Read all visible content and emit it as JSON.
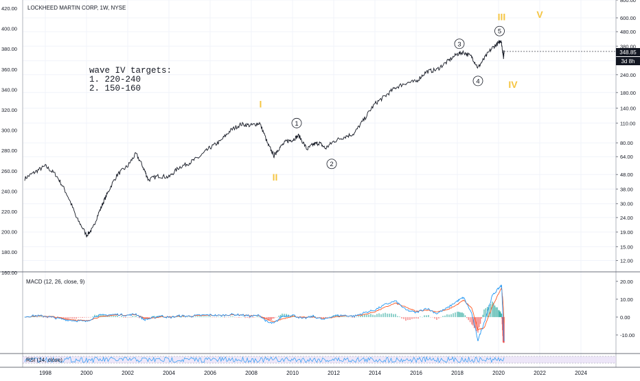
{
  "chart_data": {
    "type": "line",
    "title": "LOCKHEED MARTIN CORP, 1W, NYSE",
    "scale": "log",
    "left_axis_ticks": [
      "180.00",
      "200.00",
      "220.00",
      "240.00",
      "260.00",
      "280.00",
      "300.00",
      "320.00",
      "340.00",
      "360.00",
      "380.00",
      "400.00",
      "420.00"
    ],
    "left_axis_partial_tick": "160.00",
    "right_axis_ticks": [
      {
        "label": "12.00",
        "value": 12
      },
      {
        "label": "15.00",
        "value": 15
      },
      {
        "label": "19.00",
        "value": 19
      },
      {
        "label": "24.00",
        "value": 24
      },
      {
        "label": "30.00",
        "value": 30
      },
      {
        "label": "38.00",
        "value": 38
      },
      {
        "label": "48.00",
        "value": 48
      },
      {
        "label": "64.00",
        "value": 64
      },
      {
        "label": "80.00",
        "value": 80
      },
      {
        "label": "110.00",
        "value": 110
      },
      {
        "label": "140.00",
        "value": 140
      },
      {
        "label": "180.00",
        "value": 180
      },
      {
        "label": "240.00",
        "value": 240
      },
      {
        "label": "300.00",
        "value": 300
      },
      {
        "label": "380.00",
        "value": 380
      },
      {
        "label": "480.00",
        "value": 480
      },
      {
        "label": "600.00",
        "value": 600
      },
      {
        "label": "800.00",
        "value": 800
      }
    ],
    "ylim": [
      10,
      800
    ],
    "x_ticks": [
      "1998",
      "2000",
      "2002",
      "2004",
      "2006",
      "2008",
      "2010",
      "2012",
      "2014",
      "2016",
      "2018",
      "2020",
      "2022",
      "2024"
    ],
    "xlim": [
      1996.9,
      2025.7
    ],
    "last_price_label": "348.85",
    "time_left_label": "3d 8h",
    "series": [
      {
        "values": [
          [
            1997.0,
            45
          ],
          [
            1997.5,
            50
          ],
          [
            1998.0,
            55
          ],
          [
            1998.5,
            48
          ],
          [
            1999.0,
            36
          ],
          [
            1999.5,
            24
          ],
          [
            2000.0,
            18
          ],
          [
            2000.3,
            20
          ],
          [
            2000.7,
            28
          ],
          [
            2001.0,
            35
          ],
          [
            2001.5,
            48
          ],
          [
            2002.0,
            55
          ],
          [
            2002.4,
            67
          ],
          [
            2002.8,
            52
          ],
          [
            2003.0,
            44
          ],
          [
            2003.5,
            47
          ],
          [
            2004.0,
            46
          ],
          [
            2004.5,
            54
          ],
          [
            2005.0,
            58
          ],
          [
            2005.5,
            64
          ],
          [
            2006.0,
            74
          ],
          [
            2006.5,
            82
          ],
          [
            2007.0,
            98
          ],
          [
            2007.5,
            108
          ],
          [
            2008.0,
            106
          ],
          [
            2008.4,
            110
          ],
          [
            2008.8,
            78
          ],
          [
            2009.1,
            65
          ],
          [
            2009.3,
            72
          ],
          [
            2009.7,
            82
          ],
          [
            2010.0,
            84
          ],
          [
            2010.3,
            90
          ],
          [
            2010.7,
            72
          ],
          [
            2011.0,
            78
          ],
          [
            2011.3,
            80
          ],
          [
            2011.6,
            73
          ],
          [
            2012.0,
            82
          ],
          [
            2012.5,
            88
          ],
          [
            2013.0,
            93
          ],
          [
            2013.5,
            118
          ],
          [
            2014.0,
            150
          ],
          [
            2014.5,
            170
          ],
          [
            2015.0,
            195
          ],
          [
            2015.5,
            210
          ],
          [
            2016.0,
            215
          ],
          [
            2016.5,
            252
          ],
          [
            2017.0,
            260
          ],
          [
            2017.5,
            295
          ],
          [
            2018.0,
            335
          ],
          [
            2018.3,
            345
          ],
          [
            2018.7,
            320
          ],
          [
            2019.0,
            268
          ],
          [
            2019.3,
            310
          ],
          [
            2019.7,
            370
          ],
          [
            2020.0,
            400
          ],
          [
            2020.12,
            420
          ],
          [
            2020.2,
            350
          ],
          [
            2020.24,
            320
          ],
          [
            2020.27,
            349
          ]
        ]
      }
    ],
    "annotations": [
      {
        "text": "I",
        "x": 2008.45,
        "y": 150,
        "color": "#f5c542",
        "kind": "major"
      },
      {
        "text": "II",
        "x": 2009.15,
        "y": 46,
        "color": "#f5c542",
        "kind": "major"
      },
      {
        "text": "III",
        "x": 2020.15,
        "y": 610,
        "color": "#f5c542",
        "kind": "major"
      },
      {
        "text": "IV",
        "x": 2020.7,
        "y": 205,
        "color": "#f5c542",
        "kind": "major"
      },
      {
        "text": "V",
        "x": 2022.0,
        "y": 635,
        "color": "#f5c542",
        "kind": "major"
      },
      {
        "text": "1",
        "x": 2010.2,
        "y": 110,
        "kind": "minor"
      },
      {
        "text": "2",
        "x": 2011.9,
        "y": 57,
        "kind": "minor"
      },
      {
        "text": "3",
        "x": 2018.1,
        "y": 395,
        "kind": "minor"
      },
      {
        "text": "4",
        "x": 2019.0,
        "y": 217,
        "kind": "minor"
      },
      {
        "text": "5",
        "x": 2020.05,
        "y": 485,
        "kind": "minor"
      }
    ],
    "note_lines": [
      "wave IV targets:",
      "1. 220-240",
      "2. 150-160"
    ],
    "macd": {
      "label": "MACD (12, 26, close, 9)",
      "ticks": [
        {
          "label": "20.00",
          "value": 20
        },
        {
          "label": "10.00",
          "value": 10
        },
        {
          "label": "0.00",
          "value": 0
        },
        {
          "label": "-10.00",
          "value": -10
        }
      ],
      "ylim": [
        -20,
        23
      ],
      "macd_color": "#2196f3",
      "signal_color": "#ff5722",
      "values": [
        [
          1997.0,
          0.3
        ],
        [
          1997.5,
          0.8
        ],
        [
          1998.0,
          0.5
        ],
        [
          1998.5,
          -0.5
        ],
        [
          1999.0,
          -1.5
        ],
        [
          1999.5,
          -2.0
        ],
        [
          2000.0,
          -2.5
        ],
        [
          2000.5,
          0.8
        ],
        [
          2001.0,
          1.2
        ],
        [
          2001.5,
          1.5
        ],
        [
          2002.0,
          1.0
        ],
        [
          2002.4,
          1.8
        ],
        [
          2002.8,
          -1.5
        ],
        [
          2003.2,
          -0.5
        ],
        [
          2003.6,
          0.8
        ],
        [
          2004.0,
          -0.3
        ],
        [
          2004.5,
          0.7
        ],
        [
          2005.0,
          0.5
        ],
        [
          2005.5,
          1.0
        ],
        [
          2006.0,
          1.2
        ],
        [
          2006.5,
          0.8
        ],
        [
          2007.0,
          1.5
        ],
        [
          2007.5,
          1.2
        ],
        [
          2008.0,
          0.5
        ],
        [
          2008.4,
          1.0
        ],
        [
          2008.8,
          -3.0
        ],
        [
          2009.1,
          -3.5
        ],
        [
          2009.5,
          0.5
        ],
        [
          2010.0,
          1.2
        ],
        [
          2010.5,
          -1.0
        ],
        [
          2011.0,
          0.5
        ],
        [
          2011.5,
          -1.5
        ],
        [
          2012.0,
          0.8
        ],
        [
          2012.5,
          1.0
        ],
        [
          2013.0,
          0.5
        ],
        [
          2013.5,
          2.5
        ],
        [
          2014.0,
          4.0
        ],
        [
          2014.5,
          7.0
        ],
        [
          2015.0,
          9.0
        ],
        [
          2015.5,
          4.0
        ],
        [
          2016.0,
          2.5
        ],
        [
          2016.5,
          5.0
        ],
        [
          2017.0,
          2.0
        ],
        [
          2017.5,
          5.0
        ],
        [
          2018.0,
          9.0
        ],
        [
          2018.3,
          11.0
        ],
        [
          2018.7,
          2.0
        ],
        [
          2019.0,
          -13.0
        ],
        [
          2019.3,
          -3.0
        ],
        [
          2019.7,
          12.0
        ],
        [
          2020.0,
          16.0
        ],
        [
          2020.15,
          18.0
        ],
        [
          2020.22,
          -2.0
        ],
        [
          2020.27,
          -13.0
        ]
      ],
      "signal": [
        [
          1997.0,
          0.1
        ],
        [
          1997.5,
          0.5
        ],
        [
          1998.0,
          0.6
        ],
        [
          1998.5,
          0.0
        ],
        [
          1999.0,
          -1.0
        ],
        [
          1999.5,
          -1.6
        ],
        [
          2000.0,
          -2.1
        ],
        [
          2000.5,
          -0.3
        ],
        [
          2001.0,
          0.7
        ],
        [
          2001.5,
          1.2
        ],
        [
          2002.0,
          1.1
        ],
        [
          2002.4,
          1.4
        ],
        [
          2002.8,
          -0.5
        ],
        [
          2003.2,
          -0.7
        ],
        [
          2003.6,
          0.2
        ],
        [
          2004.0,
          0.1
        ],
        [
          2004.5,
          0.4
        ],
        [
          2005.0,
          0.5
        ],
        [
          2005.5,
          0.8
        ],
        [
          2006.0,
          1.0
        ],
        [
          2006.5,
          0.9
        ],
        [
          2007.0,
          1.2
        ],
        [
          2007.5,
          1.3
        ],
        [
          2008.0,
          0.8
        ],
        [
          2008.4,
          0.8
        ],
        [
          2008.8,
          -1.5
        ],
        [
          2009.1,
          -2.8
        ],
        [
          2009.5,
          -1.0
        ],
        [
          2010.0,
          0.5
        ],
        [
          2010.5,
          -0.2
        ],
        [
          2011.0,
          0.0
        ],
        [
          2011.5,
          -0.8
        ],
        [
          2012.0,
          0.0
        ],
        [
          2012.5,
          0.7
        ],
        [
          2013.0,
          0.6
        ],
        [
          2013.5,
          1.5
        ],
        [
          2014.0,
          3.0
        ],
        [
          2014.5,
          5.5
        ],
        [
          2015.0,
          7.8
        ],
        [
          2015.5,
          5.5
        ],
        [
          2016.0,
          3.2
        ],
        [
          2016.5,
          4.0
        ],
        [
          2017.0,
          3.0
        ],
        [
          2017.5,
          4.0
        ],
        [
          2018.0,
          7.0
        ],
        [
          2018.3,
          9.5
        ],
        [
          2018.7,
          5.0
        ],
        [
          2019.0,
          -7.0
        ],
        [
          2019.3,
          -6.0
        ],
        [
          2019.7,
          6.0
        ],
        [
          2020.0,
          13.0
        ],
        [
          2020.15,
          16.5
        ],
        [
          2020.22,
          8.0
        ],
        [
          2020.27,
          -3.0
        ]
      ]
    },
    "rsi": {
      "label": "RSI (14, close)",
      "color": "#2196f3",
      "band_color": "#e6dcf5"
    }
  }
}
